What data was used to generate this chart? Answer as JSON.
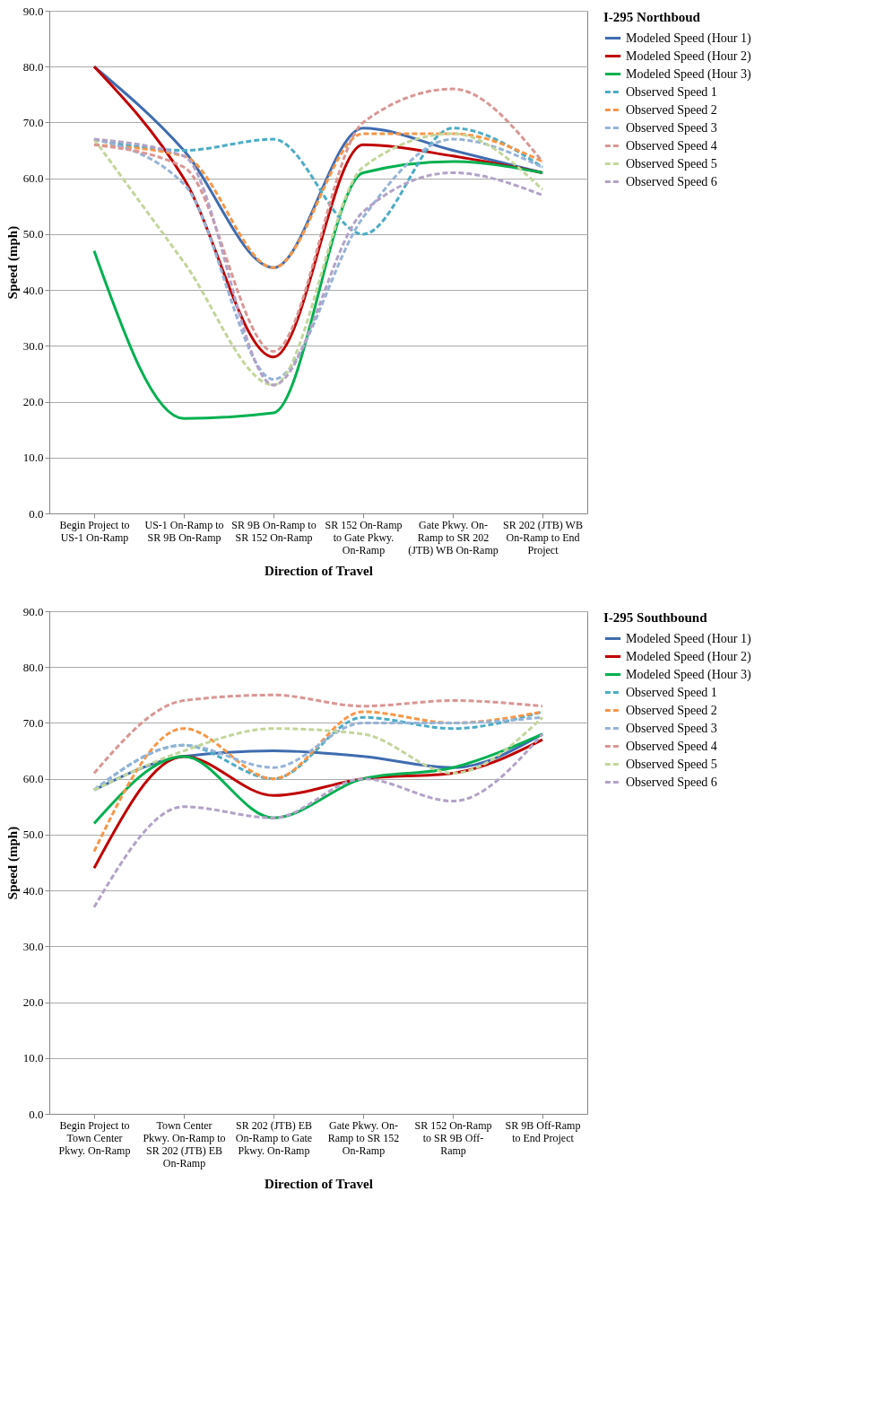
{
  "chart_data": [
    {
      "type": "line",
      "legend_title": "I-295 Northboud",
      "ylabel": "Speed (mph)",
      "xlabel": "Direction of Travel",
      "categories": [
        "Begin Project to US-1 On-Ramp",
        "US-1 On-Ramp to SR 9B On-Ramp",
        "SR 9B On-Ramp to SR 152 On-Ramp",
        "SR 152 On-Ramp to Gate Pkwy. On-Ramp",
        "Gate Pkwy. On-Ramp to SR 202 (JTB) WB On-Ramp",
        "SR 202 (JTB) WB On-Ramp to End Project"
      ],
      "ylim": [
        0,
        90
      ],
      "yticks": [
        {
          "value": 0,
          "label": "0.0"
        },
        {
          "value": 10,
          "label": "10.0"
        },
        {
          "value": 20,
          "label": "20.0"
        },
        {
          "value": 30,
          "label": "30.0"
        },
        {
          "value": 40,
          "label": "40.0"
        },
        {
          "value": 50,
          "label": "50.0"
        },
        {
          "value": 60,
          "label": "60.0"
        },
        {
          "value": 70,
          "label": "70.0"
        },
        {
          "value": 80,
          "label": "80.0"
        },
        {
          "value": 90,
          "label": "90.0"
        }
      ],
      "grid": "y",
      "legend": "right",
      "marker": "none",
      "series": [
        {
          "name": "Modeled Speed (Hour 1)",
          "color": "#3f6cb0",
          "line_style": "solid",
          "values": [
            80,
            65,
            44,
            69,
            65,
            61
          ]
        },
        {
          "name": "Modeled Speed (Hour 2)",
          "color": "#c00000",
          "line_style": "solid",
          "values": [
            80,
            60,
            28,
            66,
            64,
            61
          ]
        },
        {
          "name": "Modeled Speed (Hour 3)",
          "color": "#00b050",
          "line_style": "solid",
          "values": [
            47,
            17,
            18,
            61,
            63,
            61
          ]
        },
        {
          "name": "Observed Speed 1",
          "color": "#4bacc6",
          "line_style": "dashed",
          "values": [
            67,
            65,
            67,
            50,
            69,
            62
          ]
        },
        {
          "name": "Observed Speed 2",
          "color": "#f79646",
          "line_style": "dashed",
          "values": [
            66,
            64,
            44,
            68,
            68,
            63
          ]
        },
        {
          "name": "Observed Speed 3",
          "color": "#95b3d7",
          "line_style": "dashed",
          "values": [
            67,
            59,
            24,
            53,
            67,
            62
          ]
        },
        {
          "name": "Observed Speed 4",
          "color": "#d99694",
          "line_style": "dashed",
          "values": [
            66,
            62,
            29,
            70,
            76,
            63
          ]
        },
        {
          "name": "Observed Speed 5",
          "color": "#c3d69b",
          "line_style": "dashed",
          "values": [
            67,
            45,
            23,
            62,
            68,
            58
          ]
        },
        {
          "name": "Observed Speed 6",
          "color": "#b3a2c7",
          "line_style": "dashed",
          "values": [
            67,
            64,
            23,
            54,
            61,
            57
          ]
        }
      ]
    },
    {
      "type": "line",
      "legend_title": "I-295 Southbound",
      "ylabel": "Speed (mph)",
      "xlabel": "Direction of Travel",
      "categories": [
        "Begin Project to Town Center Pkwy. On-Ramp",
        "Town Center Pkwy. On-Ramp to SR 202 (JTB) EB On-Ramp",
        "SR 202 (JTB) EB On-Ramp to Gate Pkwy. On-Ramp",
        "Gate Pkwy. On-Ramp to SR 152 On-Ramp",
        "SR 152 On-Ramp to SR 9B Off-Ramp",
        "SR 9B Off-Ramp to End Project"
      ],
      "ylim": [
        0,
        90
      ],
      "yticks": [
        {
          "value": 0,
          "label": "0.0"
        },
        {
          "value": 10,
          "label": "10.0"
        },
        {
          "value": 20,
          "label": "20.0"
        },
        {
          "value": 30,
          "label": "30.0"
        },
        {
          "value": 40,
          "label": "40.0"
        },
        {
          "value": 50,
          "label": "50.0"
        },
        {
          "value": 60,
          "label": "60.0"
        },
        {
          "value": 70,
          "label": "70.0"
        },
        {
          "value": 80,
          "label": "80.0"
        },
        {
          "value": 90,
          "label": "90.0"
        }
      ],
      "grid": "y",
      "legend": "right",
      "marker": "none",
      "series": [
        {
          "name": "Modeled Speed (Hour 1)",
          "color": "#3f6cb0",
          "line_style": "solid",
          "values": [
            58,
            64,
            65,
            64,
            62,
            68
          ]
        },
        {
          "name": "Modeled Speed (Hour 2)",
          "color": "#c00000",
          "line_style": "solid",
          "values": [
            44,
            64,
            57,
            60,
            61,
            67
          ]
        },
        {
          "name": "Modeled Speed (Hour 3)",
          "color": "#00b050",
          "line_style": "solid",
          "values": [
            52,
            64,
            53,
            60,
            62,
            68
          ]
        },
        {
          "name": "Observed Speed 1",
          "color": "#4bacc6",
          "line_style": "dashed",
          "values": [
            58,
            66,
            60,
            71,
            69,
            72
          ]
        },
        {
          "name": "Observed Speed 2",
          "color": "#f79646",
          "line_style": "dashed",
          "values": [
            47,
            69,
            60,
            72,
            70,
            72
          ]
        },
        {
          "name": "Observed Speed 3",
          "color": "#95b3d7",
          "line_style": "dashed",
          "values": [
            58,
            66,
            62,
            70,
            70,
            71
          ]
        },
        {
          "name": "Observed Speed 4",
          "color": "#d99694",
          "line_style": "dashed",
          "values": [
            61,
            74,
            75,
            73,
            74,
            73
          ]
        },
        {
          "name": "Observed Speed 5",
          "color": "#c3d69b",
          "line_style": "dashed",
          "values": [
            58,
            65,
            69,
            68,
            61,
            71
          ]
        },
        {
          "name": "Observed Speed 6",
          "color": "#b3a2c7",
          "line_style": "dashed",
          "values": [
            37,
            55,
            53,
            60,
            56,
            68
          ]
        }
      ]
    }
  ]
}
